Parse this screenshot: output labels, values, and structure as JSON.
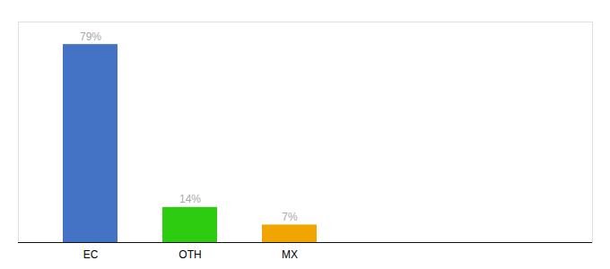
{
  "chart_data": {
    "type": "bar",
    "categories": [
      "EC",
      "OTH",
      "MX"
    ],
    "values": [
      79,
      14,
      7
    ],
    "value_labels": [
      "79%",
      "14%",
      "7%"
    ],
    "colors": [
      "#4472c4",
      "#2ecc11",
      "#f0a500"
    ],
    "ylim": [
      0,
      88
    ],
    "data_labels": true,
    "tick_labels": "x",
    "grid": false
  }
}
